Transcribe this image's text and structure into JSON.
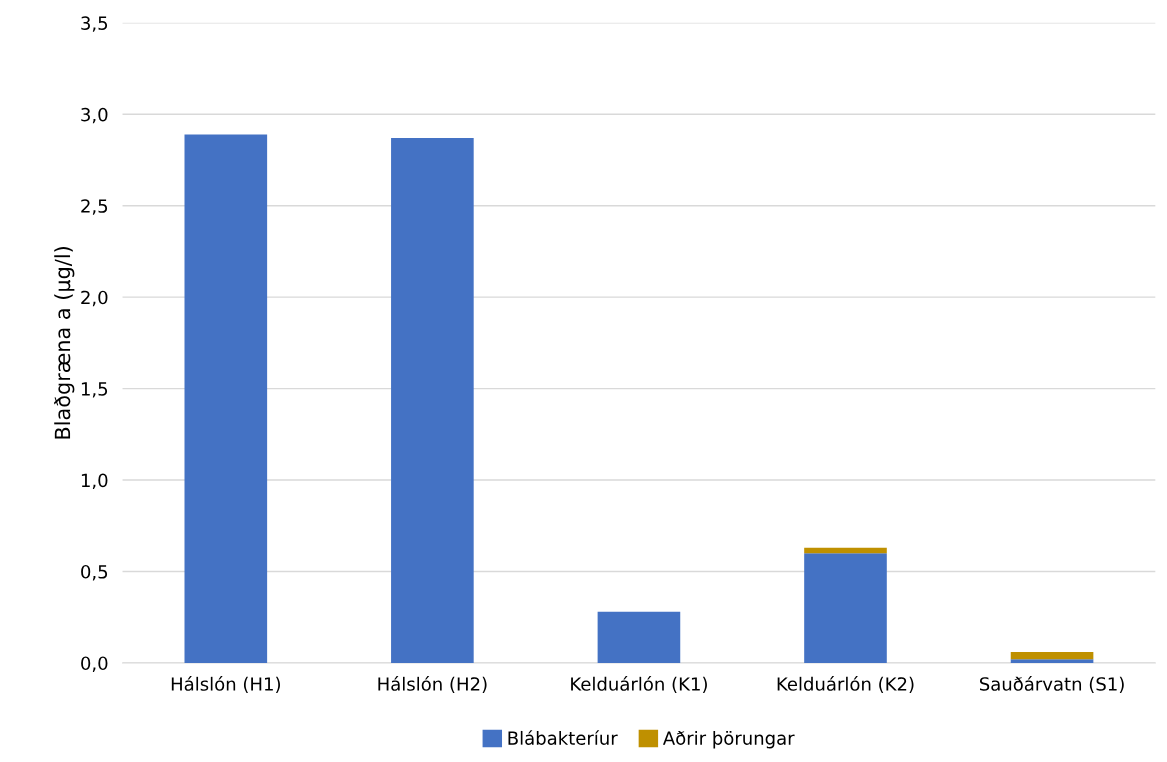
{
  "chart_data": {
    "type": "bar",
    "stacked": true,
    "ylabel": "Blaðgræna a (µg/l)",
    "categories": [
      "Hálslón (H1)",
      "Hálslón (H2)",
      "Kelduárlón (K1)",
      "Kelduárlón (K2)",
      "Sauðárvatn (S1)"
    ],
    "series": [
      {
        "name": "Blábakteríur",
        "color": "#4472c4",
        "values": [
          2.89,
          2.87,
          0.28,
          0.6,
          0.02
        ]
      },
      {
        "name": "Aðrir þörungar",
        "color": "#bf9000",
        "values": [
          0,
          0,
          0,
          0.03,
          0.04
        ]
      }
    ],
    "ylim": [
      0,
      3.5
    ],
    "yticks": [
      {
        "value": 0,
        "label": "0,0"
      },
      {
        "value": 0.5,
        "label": "0,5"
      },
      {
        "value": 1,
        "label": "1,0"
      },
      {
        "value": 1.5,
        "label": "1,5"
      },
      {
        "value": 2,
        "label": "2,0"
      },
      {
        "value": 2.5,
        "label": "2,5"
      },
      {
        "value": 3,
        "label": "3,0"
      },
      {
        "value": 3.5,
        "label": "3,5"
      }
    ],
    "grid": "y",
    "legend": "bottom"
  }
}
